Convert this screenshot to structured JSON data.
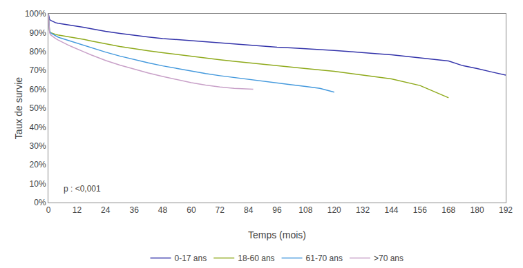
{
  "chart_data": {
    "type": "line",
    "xlabel": "Temps (mois)",
    "ylabel": "Taux de survie",
    "xlim": [
      0,
      192
    ],
    "ylim": [
      0,
      1.0
    ],
    "xticks": [
      0,
      12,
      24,
      36,
      48,
      60,
      72,
      84,
      96,
      108,
      120,
      132,
      144,
      156,
      168,
      180,
      192
    ],
    "yticks": [
      {
        "value": 0.0,
        "label": "0%"
      },
      {
        "value": 0.1,
        "label": "10%"
      },
      {
        "value": 0.2,
        "label": "20%"
      },
      {
        "value": 0.3,
        "label": "30%"
      },
      {
        "value": 0.4,
        "label": "40%"
      },
      {
        "value": 0.5,
        "label": "50%"
      },
      {
        "value": 0.6,
        "label": "60%"
      },
      {
        "value": 0.7,
        "label": "70%"
      },
      {
        "value": 0.8,
        "label": "80%"
      },
      {
        "value": 0.9,
        "label": "90%"
      },
      {
        "value": 1.0,
        "label": "100%"
      }
    ],
    "annotations": [
      "p : <0,001"
    ],
    "grid": false,
    "legend": "bottom",
    "series": [
      {
        "name": "0-17 ans",
        "color": "#3333aa",
        "x": [
          0,
          0.5,
          1,
          2,
          3,
          4,
          5,
          6,
          8,
          10,
          12,
          15,
          18,
          21,
          24,
          30,
          36,
          42,
          48,
          54,
          60,
          66,
          72,
          78,
          84,
          90,
          96,
          102,
          108,
          114,
          120,
          126,
          132,
          138,
          144,
          150,
          156,
          162,
          168,
          174,
          180,
          186,
          192
        ],
        "values": [
          1.0,
          0.97,
          0.965,
          0.958,
          0.953,
          0.95,
          0.948,
          0.946,
          0.942,
          0.939,
          0.936,
          0.928,
          0.921,
          0.914,
          0.907,
          0.896,
          0.886,
          0.877,
          0.869,
          0.863,
          0.857,
          0.851,
          0.845,
          0.84,
          0.835,
          0.829,
          0.823,
          0.819,
          0.815,
          0.811,
          0.806,
          0.8,
          0.793,
          0.788,
          0.783,
          0.775,
          0.768,
          0.758,
          0.75,
          0.725,
          0.71,
          0.692,
          0.675
        ]
      },
      {
        "name": "18-60 ans",
        "color": "#8faa1c",
        "x": [
          0,
          0.5,
          1,
          2,
          3,
          4,
          5,
          6,
          8,
          10,
          12,
          15,
          18,
          21,
          24,
          30,
          36,
          42,
          48,
          54,
          60,
          66,
          72,
          78,
          84,
          90,
          96,
          102,
          108,
          114,
          120,
          132,
          144,
          156,
          168
        ],
        "values": [
          1.0,
          0.908,
          0.9,
          0.895,
          0.891,
          0.888,
          0.886,
          0.884,
          0.88,
          0.876,
          0.872,
          0.864,
          0.856,
          0.848,
          0.841,
          0.827,
          0.815,
          0.804,
          0.794,
          0.784,
          0.775,
          0.765,
          0.756,
          0.748,
          0.74,
          0.732,
          0.724,
          0.717,
          0.71,
          0.703,
          0.695,
          0.675,
          0.655,
          0.62,
          0.555
        ]
      },
      {
        "name": "61-70 ans",
        "color": "#4499dd",
        "x": [
          0,
          0.5,
          1,
          2,
          3,
          4,
          5,
          6,
          8,
          10,
          12,
          15,
          18,
          21,
          24,
          30,
          36,
          42,
          48,
          54,
          60,
          66,
          72,
          78,
          84,
          90,
          96,
          102,
          108,
          114,
          120
        ],
        "values": [
          1.0,
          0.908,
          0.898,
          0.89,
          0.883,
          0.877,
          0.872,
          0.868,
          0.86,
          0.852,
          0.845,
          0.833,
          0.82,
          0.808,
          0.797,
          0.776,
          0.757,
          0.74,
          0.724,
          0.71,
          0.696,
          0.683,
          0.672,
          0.662,
          0.652,
          0.642,
          0.633,
          0.624,
          0.615,
          0.605,
          0.585
        ]
      },
      {
        "name": ">70 ans",
        "color": "#c8a0c8",
        "x": [
          0,
          0.5,
          1,
          2,
          3,
          4,
          5,
          6,
          8,
          10,
          12,
          15,
          18,
          21,
          24,
          30,
          36,
          42,
          48,
          54,
          60,
          66,
          72,
          78,
          84,
          86
        ],
        "values": [
          1.0,
          0.9,
          0.888,
          0.878,
          0.869,
          0.862,
          0.855,
          0.848,
          0.836,
          0.825,
          0.815,
          0.798,
          0.782,
          0.767,
          0.753,
          0.728,
          0.706,
          0.686,
          0.668,
          0.651,
          0.635,
          0.622,
          0.612,
          0.605,
          0.6,
          0.6
        ]
      }
    ]
  }
}
